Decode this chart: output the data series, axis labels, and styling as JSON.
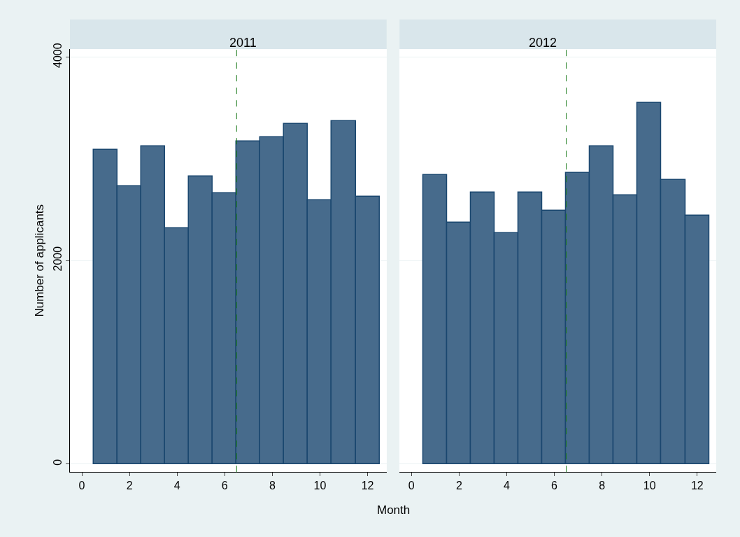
{
  "chart_data": [
    {
      "type": "histogram",
      "title": "2011",
      "xlabel": "Month",
      "ylabel": "Number of applicants",
      "bins": [
        0.5,
        1.5,
        2.5,
        3.5,
        4.5,
        5.5,
        6.5,
        7.5,
        8.5,
        9.5,
        10.5,
        11.5,
        12.5
      ],
      "values": [
        3090,
        2730,
        3120,
        2320,
        2830,
        2660,
        3170,
        3210,
        3340,
        2590,
        3370,
        2630
      ],
      "color": "#476b8c",
      "xlim": [
        -0.5,
        12.8
      ],
      "xticks": [
        0,
        2,
        4,
        6,
        8,
        10,
        12
      ],
      "ylim": [
        -80,
        4080
      ],
      "yticks": [
        0,
        2000,
        4000
      ],
      "grid": "y",
      "ref_lines": [
        {
          "axis": "x",
          "value": 6.5,
          "color": "#1a7a1a",
          "line_style": "dashed"
        }
      ]
    },
    {
      "type": "histogram",
      "title": "2012",
      "bins": [
        0.5,
        1.5,
        2.5,
        3.5,
        4.5,
        5.5,
        6.5,
        7.5,
        8.5,
        9.5,
        10.5,
        11.5,
        12.5
      ],
      "values": [
        2840,
        2370,
        2670,
        2270,
        2670,
        2490,
        2860,
        3120,
        2640,
        3550,
        2790,
        2440
      ],
      "color": "#476b8c",
      "xlim": [
        -0.5,
        12.8
      ],
      "xticks": [
        0,
        2,
        4,
        6,
        8,
        10,
        12
      ],
      "ylim": [
        -80,
        4080
      ],
      "yticks": [
        0,
        2000,
        4000
      ],
      "grid": "y",
      "tick_labels": "x",
      "ref_lines": [
        {
          "axis": "x",
          "value": 6.5,
          "color": "#1a7a1a",
          "line_style": "dashed"
        }
      ]
    }
  ]
}
